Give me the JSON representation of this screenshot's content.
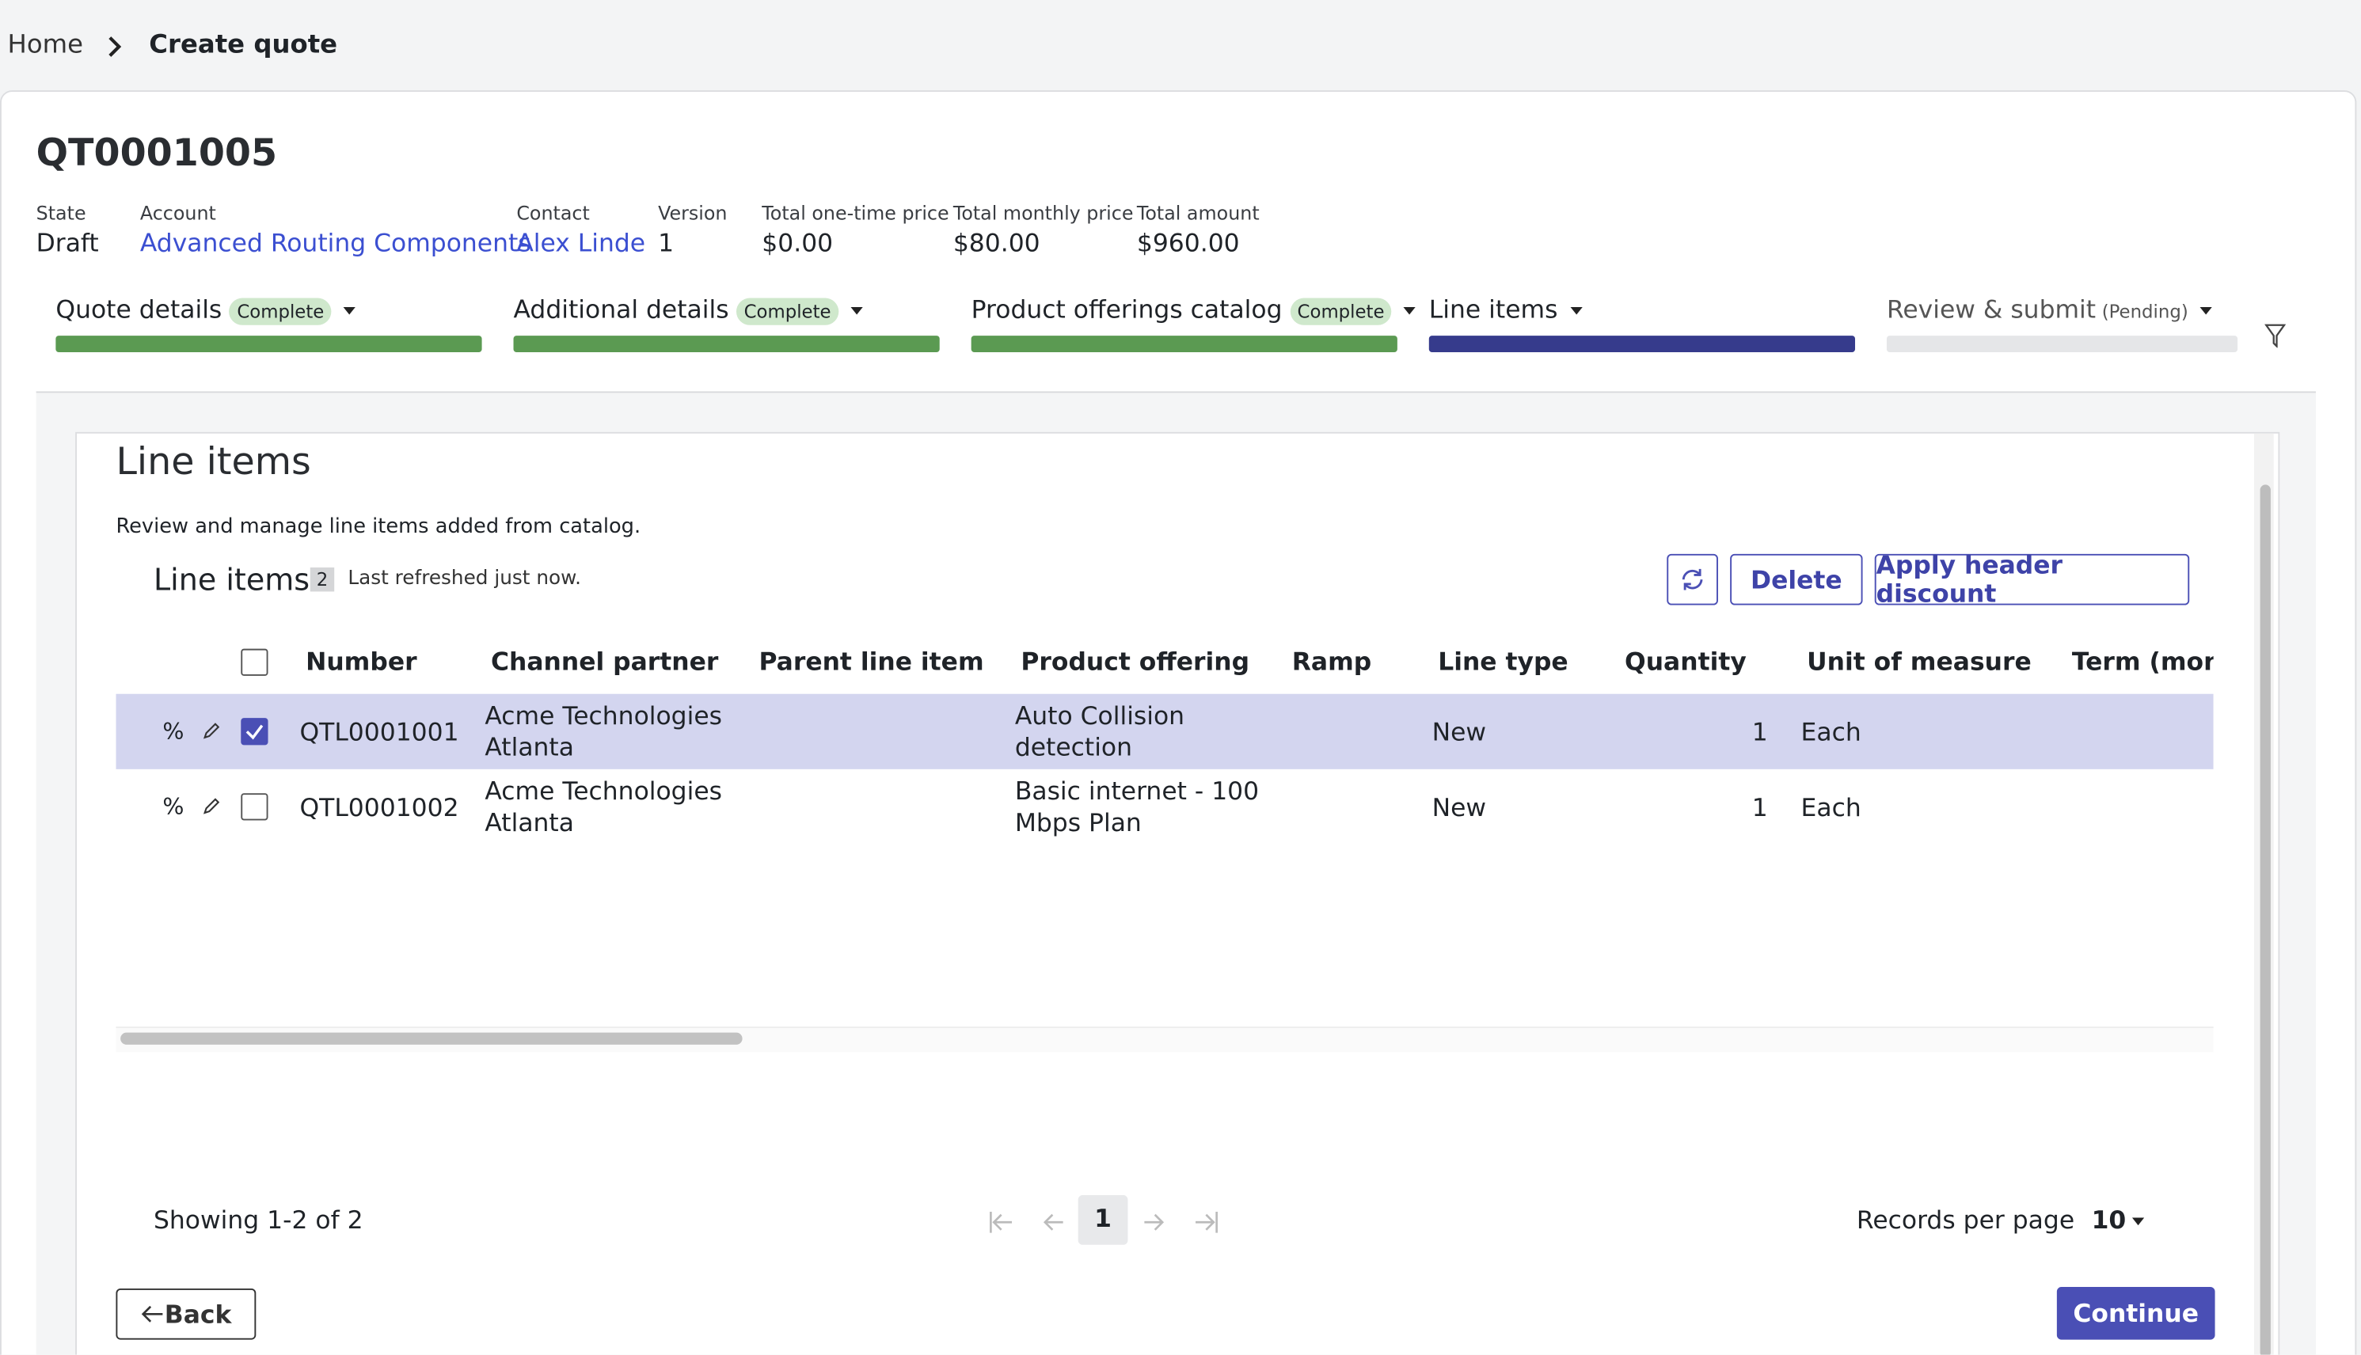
{
  "breadcrumb": [
    "Home",
    "Create quote"
  ],
  "quote": {
    "number": "QT0001005",
    "fields": [
      {
        "label": "State",
        "value": "Draft"
      },
      {
        "label": "Account",
        "value": "Advanced Routing Components",
        "link": true
      },
      {
        "label": "Contact",
        "value": "Alex Linde",
        "link": true
      },
      {
        "label": "Version",
        "value": "1"
      },
      {
        "label": "Total one-time price",
        "value": "$0.00"
      },
      {
        "label": "Total monthly price",
        "value": "$80.00"
      },
      {
        "label": "Total amount",
        "value": "$960.00"
      }
    ]
  },
  "steps": [
    {
      "label": "Quote details",
      "badge": "Complete",
      "color": "#5b9a52"
    },
    {
      "label": "Additional details",
      "badge": "Complete",
      "color": "#5b9a52"
    },
    {
      "label": "Product offerings catalog",
      "badge": "Complete",
      "color": "#5b9a52"
    },
    {
      "label": "Line items",
      "color": "#363b8c"
    },
    {
      "label": "Review & submit",
      "status": "(Pending)",
      "color": "#e5e6e8"
    }
  ],
  "panel": {
    "title": "Line items",
    "description": "Review and manage line items added from catalog.",
    "table_title": "Line items",
    "count": "2",
    "refreshed": "Last refreshed just now.",
    "buttons": [
      "Delete",
      "Apply header discount"
    ]
  },
  "table": {
    "columns": [
      "Number",
      "Channel partner",
      "Parent line item",
      "Product offering",
      "Ramp",
      "Line type",
      "Quantity",
      "Unit of measure",
      "Term (months)"
    ],
    "row_icon": "%",
    "rows": [
      {
        "number": "QTL0001001",
        "channel_partner": [
          "Acme Technologies",
          "Atlanta"
        ],
        "product_offering": [
          "Auto Collision",
          "detection"
        ],
        "line_type": "New",
        "quantity": 1,
        "unit": "Each",
        "selected": true
      },
      {
        "number": "QTL0001002",
        "channel_partner": [
          "Acme Technologies",
          "Atlanta"
        ],
        "product_offering": [
          "Basic internet - 100",
          "Mbps Plan"
        ],
        "line_type": "New",
        "quantity": 1,
        "unit": "Each",
        "selected": false
      }
    ]
  },
  "pagination": {
    "summary": "Showing 1-2 of 2",
    "page": "1",
    "records_label": "Records per page",
    "records_per_page": "10"
  },
  "footer": {
    "back": "Back",
    "continue": "Continue"
  }
}
